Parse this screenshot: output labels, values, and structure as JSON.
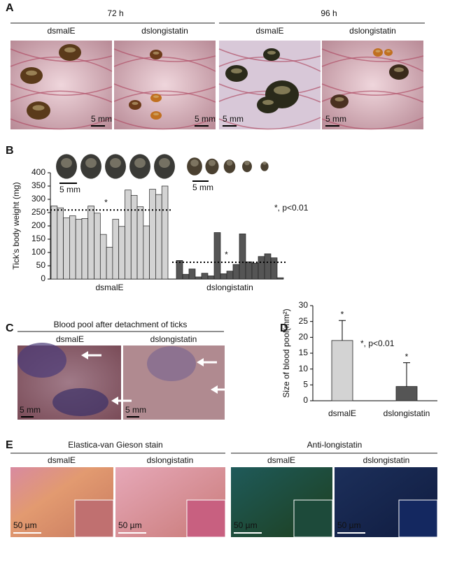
{
  "panels": {
    "A": {
      "label": "A",
      "headers": [
        "72 h",
        "96 h"
      ],
      "columns": [
        "dsmalE",
        "dslongistatin",
        "dsmalE",
        "dslongistatin"
      ],
      "scale_labels": [
        "5 mm",
        "5 mm",
        "5 mm",
        "5 mm"
      ]
    },
    "B": {
      "label": "B",
      "scale_labels": [
        "5 mm",
        "5 mm"
      ]
    },
    "C": {
      "label": "C",
      "title": "Blood pool after detachment of ticks",
      "columns": [
        "dsmalE",
        "dslongistatin"
      ],
      "scale_labels": [
        "5 mm",
        "5 mm"
      ]
    },
    "D": {
      "label": "D"
    },
    "E": {
      "label": "E",
      "headers": [
        "Elastica-van Gieson stain",
        "Anti-longistatin"
      ],
      "columns": [
        "dsmalE",
        "dslongistatin",
        "dsmalE",
        "dslongistatin"
      ],
      "scale_labels": [
        "50 µm",
        "50 µm",
        "50 µm",
        "50 µm"
      ]
    }
  },
  "chart_data": [
    {
      "type": "bar",
      "y_label": "Tick's body weight (mg)",
      "ylim": [
        0,
        400
      ],
      "yticks": [
        0,
        50,
        100,
        150,
        200,
        250,
        300,
        350,
        400
      ],
      "groups": [
        {
          "name": "dsmalE",
          "color": "#d3d3d3",
          "values": [
            275,
            268,
            230,
            238,
            225,
            228,
            275,
            248,
            168,
            120,
            225,
            198,
            335,
            315,
            272,
            200,
            338,
            318,
            350
          ],
          "mean": 260
        },
        {
          "name": "dslongistatin",
          "color": "#555555",
          "values": [
            70,
            18,
            38,
            8,
            22,
            12,
            175,
            20,
            30,
            55,
            170,
            65,
            60,
            85,
            95,
            80,
            5
          ],
          "mean": 63
        }
      ],
      "annotations": [
        "*",
        "*",
        "*, p<0.01"
      ]
    },
    {
      "type": "bar",
      "y_label": "Size of blood pool(mm²)",
      "ylim": [
        0,
        30
      ],
      "yticks": [
        0,
        5,
        10,
        15,
        20,
        25,
        30
      ],
      "categories": [
        "dsmalE",
        "dslongistatin"
      ],
      "values": [
        19,
        4.5
      ],
      "errors": [
        6.3,
        7.5
      ],
      "colors": [
        "#d3d3d3",
        "#555555"
      ],
      "annotations": [
        "*",
        "*",
        "*, p<0.01"
      ]
    }
  ]
}
